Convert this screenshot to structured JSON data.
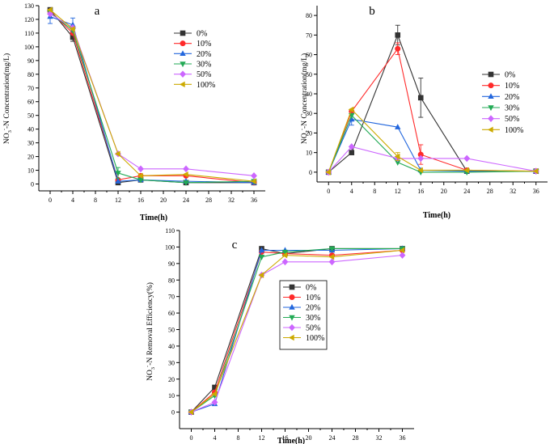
{
  "colors": {
    "s0": "#333333",
    "s10": "#ff2a2a",
    "s20": "#2266dd",
    "s30": "#22aa55",
    "s50": "#cc66ff",
    "s100": "#ccaa00"
  },
  "chart_data": [
    {
      "panel": "a",
      "type": "line",
      "title": "",
      "xlabel": "Time(h)",
      "ylabel": "NO3--N Concentration(mg/L)",
      "ylabel_main": "NO",
      "ylabel_sub": "3",
      "ylabel_sup": "-",
      "ylabel_rest": "-N Concentration(mg/L)",
      "xlim": [
        -2,
        38
      ],
      "ylim": [
        -5,
        130
      ],
      "xticks": [
        0,
        4,
        8,
        12,
        16,
        20,
        24,
        28,
        32,
        36
      ],
      "yticks": [
        0,
        10,
        20,
        30,
        40,
        50,
        60,
        70,
        80,
        90,
        100,
        110,
        120,
        130
      ],
      "legend_placement": "right",
      "x": [
        0,
        4,
        12,
        16,
        24,
        36
      ],
      "series": [
        {
          "name": "0%",
          "marker": "square",
          "color_key": "s0",
          "values": [
            127,
            107,
            1,
            3,
            1,
            1
          ],
          "err": [
            0,
            3,
            0,
            0,
            0,
            0
          ]
        },
        {
          "name": "10%",
          "marker": "circle",
          "color_key": "s10",
          "values": [
            126,
            110,
            3,
            6,
            6,
            1
          ],
          "err": [
            0,
            0,
            0,
            0,
            0,
            0
          ]
        },
        {
          "name": "20%",
          "marker": "triangle-up",
          "color_key": "s20",
          "values": [
            122,
            116,
            2,
            3,
            2,
            1
          ],
          "err": [
            5,
            5,
            0,
            0,
            0,
            0
          ]
        },
        {
          "name": "30%",
          "marker": "triangle-down",
          "color_key": "s30",
          "values": [
            125,
            112,
            8,
            3,
            1,
            2
          ],
          "err": [
            0,
            0,
            4,
            0,
            0,
            0
          ]
        },
        {
          "name": "50%",
          "marker": "diamond",
          "color_key": "s50",
          "values": [
            124,
            114,
            22,
            11,
            11,
            6
          ],
          "err": [
            0,
            0,
            0,
            0,
            0,
            0
          ]
        },
        {
          "name": "100%",
          "marker": "triangle-left",
          "color_key": "s100",
          "values": [
            127,
            113,
            22,
            6,
            7,
            2
          ],
          "err": [
            0,
            0,
            0,
            0,
            0,
            0
          ]
        }
      ]
    },
    {
      "panel": "b",
      "type": "line",
      "title": "",
      "xlabel": "Time(h)",
      "ylabel": "NO2--N Concentration(mg/L)",
      "ylabel_main": "NO",
      "ylabel_sub": "2",
      "ylabel_sup": "-",
      "ylabel_rest": "-N Concentration(mg/L)",
      "xlim": [
        -2,
        38
      ],
      "ylim": [
        -5,
        85
      ],
      "xticks": [
        0,
        4,
        8,
        12,
        16,
        20,
        24,
        28,
        32,
        36
      ],
      "yticks": [
        0,
        10,
        20,
        30,
        40,
        50,
        60,
        70,
        80
      ],
      "legend_placement": "right",
      "x": [
        0,
        4,
        12,
        16,
        24,
        36
      ],
      "series": [
        {
          "name": "0%",
          "marker": "square",
          "color_key": "s0",
          "values": [
            0,
            10,
            70,
            38,
            0.5,
            0.5
          ],
          "err": [
            0,
            0,
            5,
            10,
            0,
            0
          ]
        },
        {
          "name": "10%",
          "marker": "circle",
          "color_key": "s10",
          "values": [
            0,
            31,
            63,
            9,
            1,
            0.5
          ],
          "err": [
            0,
            0,
            3,
            5,
            0,
            0
          ]
        },
        {
          "name": "20%",
          "marker": "triangle-up",
          "color_key": "s20",
          "values": [
            0,
            27,
            23,
            1,
            0.5,
            0.5
          ],
          "err": [
            0,
            3,
            0,
            0,
            0,
            0
          ]
        },
        {
          "name": "30%",
          "marker": "triangle-down",
          "color_key": "s30",
          "values": [
            0,
            29,
            5,
            0,
            0,
            0.5
          ],
          "err": [
            0,
            0,
            0,
            0,
            0,
            0
          ]
        },
        {
          "name": "50%",
          "marker": "diamond",
          "color_key": "s50",
          "values": [
            0,
            13,
            7,
            7,
            7,
            0.5
          ],
          "err": [
            0,
            0,
            0,
            0,
            0,
            0
          ]
        },
        {
          "name": "100%",
          "marker": "triangle-left",
          "color_key": "s100",
          "values": [
            0,
            32,
            8,
            1,
            1,
            0.5
          ],
          "err": [
            0,
            0,
            2,
            0,
            0,
            0
          ]
        }
      ]
    },
    {
      "panel": "c",
      "type": "line",
      "title": "",
      "xlabel": "Time(h)",
      "ylabel": "NO3--N Removal Efficiency(%)",
      "ylabel_main": "NO",
      "ylabel_sub": "3",
      "ylabel_sup": "-",
      "ylabel_rest": "-N Removal Efficiency(%)",
      "xlim": [
        -2,
        38
      ],
      "ylim": [
        -10,
        110
      ],
      "xticks": [
        0,
        4,
        8,
        12,
        16,
        20,
        24,
        28,
        32,
        36
      ],
      "yticks": [
        0,
        10,
        20,
        30,
        40,
        50,
        60,
        70,
        80,
        90,
        100,
        110
      ],
      "legend_placement": "center-left",
      "x": [
        0,
        4,
        12,
        16,
        24,
        36
      ],
      "series": [
        {
          "name": "0%",
          "marker": "square",
          "color_key": "s0",
          "values": [
            0,
            15,
            99,
            96,
            99,
            99
          ],
          "err": [
            0,
            0,
            0,
            0,
            0,
            0
          ]
        },
        {
          "name": "10%",
          "marker": "circle",
          "color_key": "s10",
          "values": [
            0,
            12,
            97,
            96,
            95,
            98
          ],
          "err": [
            0,
            0,
            0,
            0,
            0,
            0
          ]
        },
        {
          "name": "20%",
          "marker": "triangle-up",
          "color_key": "s20",
          "values": [
            0,
            5,
            98,
            98,
            98,
            99
          ],
          "err": [
            0,
            0,
            0,
            0,
            0,
            0
          ]
        },
        {
          "name": "30%",
          "marker": "triangle-down",
          "color_key": "s30",
          "values": [
            0,
            10,
            94,
            97,
            99,
            99
          ],
          "err": [
            0,
            0,
            0,
            0,
            0,
            0
          ]
        },
        {
          "name": "50%",
          "marker": "diamond",
          "color_key": "s50",
          "values": [
            0,
            6,
            83,
            91,
            91,
            95
          ],
          "err": [
            0,
            0,
            0,
            0,
            0,
            0
          ]
        },
        {
          "name": "100%",
          "marker": "triangle-left",
          "color_key": "s100",
          "values": [
            0,
            11,
            83,
            95,
            94,
            98
          ],
          "err": [
            0,
            0,
            0,
            0,
            0,
            0
          ]
        }
      ]
    }
  ]
}
